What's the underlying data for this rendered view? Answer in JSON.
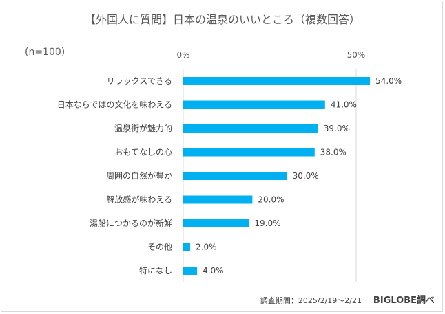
{
  "chart_data": {
    "type": "bar",
    "orientation": "horizontal",
    "title": "【外国人に質問】日本の温泉のいいところ（複数回答）",
    "sample_note": "(n=100)",
    "categories": [
      "リラックスできる",
      "日本ならではの文化を味わえる",
      "温泉街が魅力的",
      "おもてなしの心",
      "周囲の自然が豊か",
      "解放感が味わえる",
      "湯船につかるのが新鮮",
      "その他",
      "特になし"
    ],
    "values": [
      54.0,
      41.0,
      39.0,
      38.0,
      30.0,
      20.0,
      19.0,
      2.0,
      4.0
    ],
    "value_labels": [
      "54.0%",
      "41.0%",
      "39.0%",
      "38.0%",
      "30.0%",
      "20.0%",
      "19.0%",
      "2.0%",
      "4.0%"
    ],
    "xlim": [
      0,
      50
    ],
    "x_ticks": [
      0,
      50
    ],
    "x_tick_labels": [
      "0%",
      "50%"
    ],
    "x_axis_position": "top",
    "grid": true,
    "bar_color": "#00b0f0",
    "xlabel": "",
    "ylabel": ""
  },
  "footer": {
    "period": "調査期間：2025/2/19～2/21",
    "source": "BIGLOBE調べ"
  }
}
